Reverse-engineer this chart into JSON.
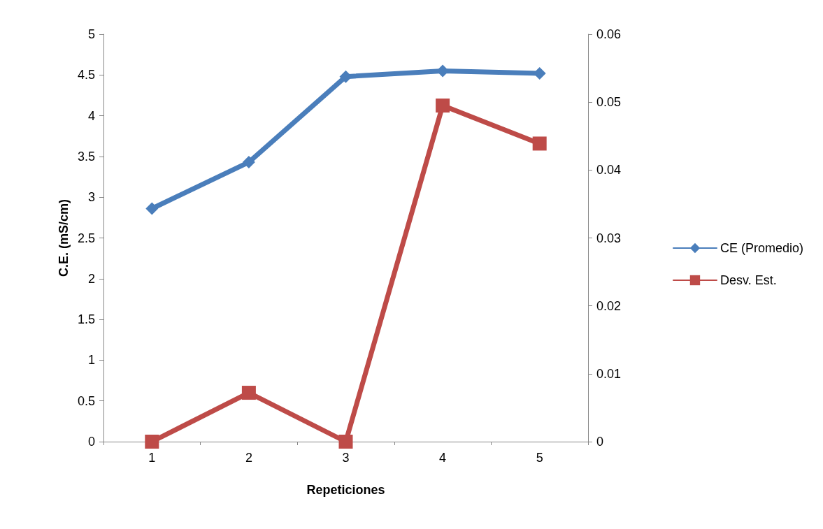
{
  "chart_data": {
    "type": "line",
    "xlabel": "Repeticiones",
    "ylabel": "C.E. (mS/cm)",
    "categories": [
      "1",
      "2",
      "3",
      "4",
      "5"
    ],
    "series": [
      {
        "name": "CE (Promedio)",
        "color": "#4a7ebb",
        "values": [
          2.86,
          3.43,
          4.48,
          4.55,
          4.52
        ],
        "marker": "diamond"
      },
      {
        "name": "Desv. Est.",
        "color": "#be4b48",
        "values": [
          0,
          0.0072,
          0,
          0.0495,
          0.0439
        ],
        "marker": "square",
        "axis": "y2"
      }
    ],
    "ylim": [
      0,
      5
    ],
    "yticks": [
      0,
      0.5,
      1,
      1.5,
      2,
      2.5,
      3,
      3.5,
      4,
      4.5,
      5
    ],
    "y2lim": [
      0,
      0.06
    ],
    "y2ticks": [
      0,
      0.01,
      0.02,
      0.03,
      0.04,
      0.05,
      0.06
    ],
    "grid": false,
    "legend": "right",
    "line_style": "solid"
  }
}
